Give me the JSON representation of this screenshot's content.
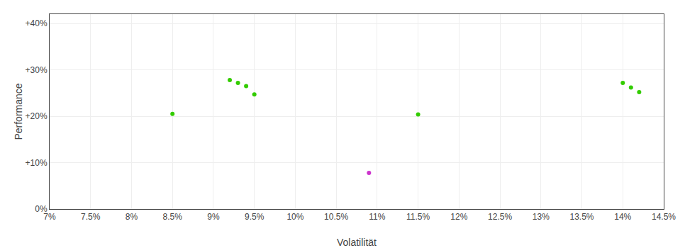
{
  "chart_data": {
    "type": "scatter",
    "xlabel": "Volatilität",
    "ylabel": "Performance",
    "series": [
      {
        "color": "#33cc00",
        "x": [
          0.085,
          0.092,
          0.093,
          0.094,
          0.095,
          0.115,
          0.14,
          0.141,
          0.142
        ],
        "values": [
          0.205,
          0.278,
          0.272,
          0.265,
          0.247,
          0.204,
          0.272,
          0.262,
          0.252
        ]
      },
      {
        "color": "#cc33cc",
        "x": [
          0.109
        ],
        "values": [
          0.078
        ]
      }
    ],
    "xlim": [
      0.07,
      0.145
    ],
    "ylim": [
      0.0,
      0.42
    ],
    "xticks": [
      {
        "value": 0.07,
        "label": "7%"
      },
      {
        "value": 0.075,
        "label": "7.5%"
      },
      {
        "value": 0.08,
        "label": "8%"
      },
      {
        "value": 0.085,
        "label": "8.5%"
      },
      {
        "value": 0.09,
        "label": "9%"
      },
      {
        "value": 0.095,
        "label": "9.5%"
      },
      {
        "value": 0.1,
        "label": "10%"
      },
      {
        "value": 0.105,
        "label": "10.5%"
      },
      {
        "value": 0.11,
        "label": "11%"
      },
      {
        "value": 0.115,
        "label": "11.5%"
      },
      {
        "value": 0.12,
        "label": "12%"
      },
      {
        "value": 0.125,
        "label": "12.5%"
      },
      {
        "value": 0.13,
        "label": "13%"
      },
      {
        "value": 0.135,
        "label": "13.5%"
      },
      {
        "value": 0.14,
        "label": "14%"
      },
      {
        "value": 0.145,
        "label": "14.5%"
      }
    ],
    "yticks": [
      {
        "value": 0.0,
        "label": "0%"
      },
      {
        "value": 0.1,
        "label": "+10%"
      },
      {
        "value": 0.2,
        "label": "+20%"
      },
      {
        "value": 0.3,
        "label": "+30%"
      },
      {
        "value": 0.4,
        "label": "+40%"
      }
    ],
    "grid": true
  }
}
